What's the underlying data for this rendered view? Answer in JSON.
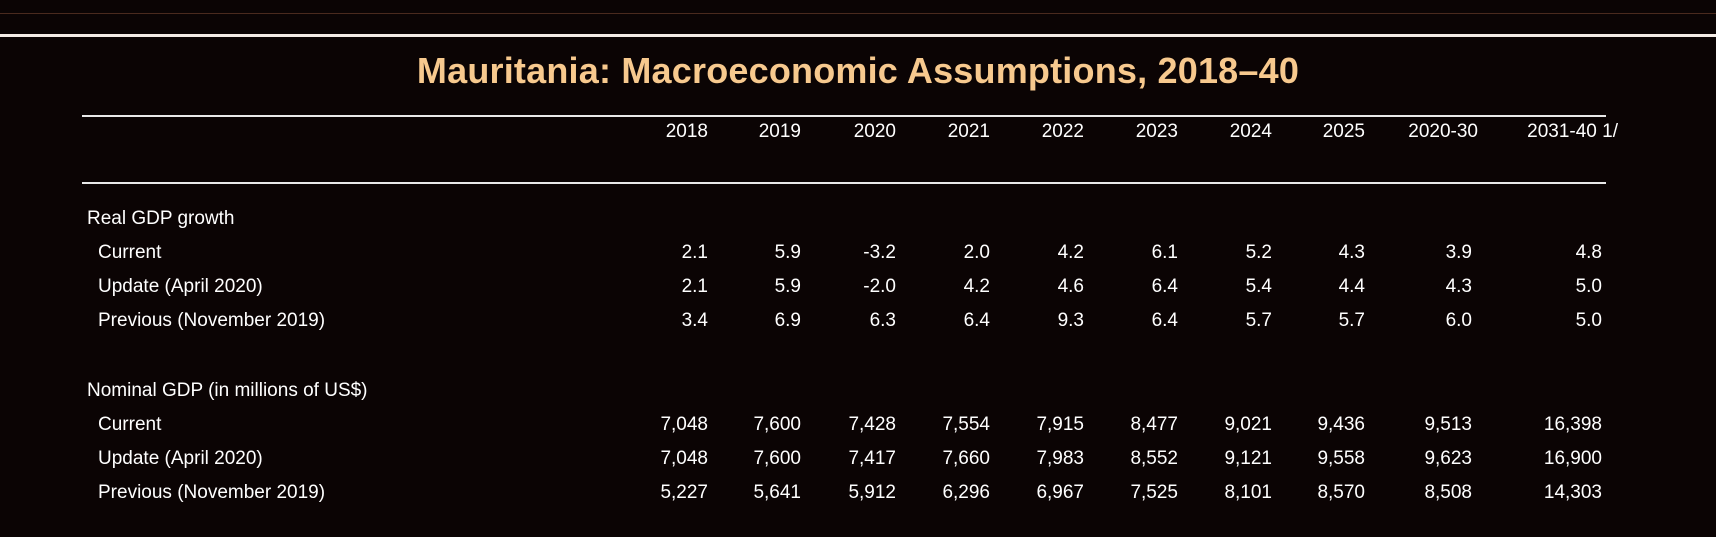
{
  "title": "Mauritania: Macroeconomic Assumptions, 2018–40",
  "columns": [
    "2018",
    "2019",
    "2020",
    "2021",
    "2022",
    "2023",
    "2024",
    "2025",
    "2020-30",
    "2031-40 1/"
  ],
  "sections": [
    {
      "heading": "Real GDP growth",
      "rows": [
        {
          "label": "Current",
          "values": [
            "2.1",
            "5.9",
            "-3.2",
            "2.0",
            "4.2",
            "6.1",
            "5.2",
            "4.3",
            "3.9",
            "4.8"
          ]
        },
        {
          "label": "Update  (April 2020)",
          "values": [
            "2.1",
            "5.9",
            "-2.0",
            "4.2",
            "4.6",
            "6.4",
            "5.4",
            "4.4",
            "4.3",
            "5.0"
          ]
        },
        {
          "label": "Previous (November 2019)",
          "values": [
            "3.4",
            "6.9",
            "6.3",
            "6.4",
            "9.3",
            "6.4",
            "5.7",
            "5.7",
            "6.0",
            "5.0"
          ]
        }
      ]
    },
    {
      "heading": "Nominal GDP (in millions of US$)",
      "rows": [
        {
          "label": "Current",
          "values": [
            "7,048",
            "7,600",
            "7,428",
            "7,554",
            "7,915",
            "8,477",
            "9,021",
            "9,436",
            "9,513",
            "16,398"
          ]
        },
        {
          "label": "Update  (April 2020)",
          "values": [
            "7,048",
            "7,600",
            "7,417",
            "7,660",
            "7,983",
            "8,552",
            "9,121",
            "9,558",
            "9,623",
            "16,900"
          ]
        },
        {
          "label": "Previous (November 2019)",
          "values": [
            "5,227",
            "5,641",
            "5,912",
            "6,296",
            "6,967",
            "7,525",
            "8,101",
            "8,570",
            "8,508",
            "14,303"
          ]
        }
      ]
    }
  ],
  "colors": {
    "background": "#0b0404",
    "title": "#f7c98e",
    "text": "#ffffff",
    "rule": "#e9e9e9"
  }
}
